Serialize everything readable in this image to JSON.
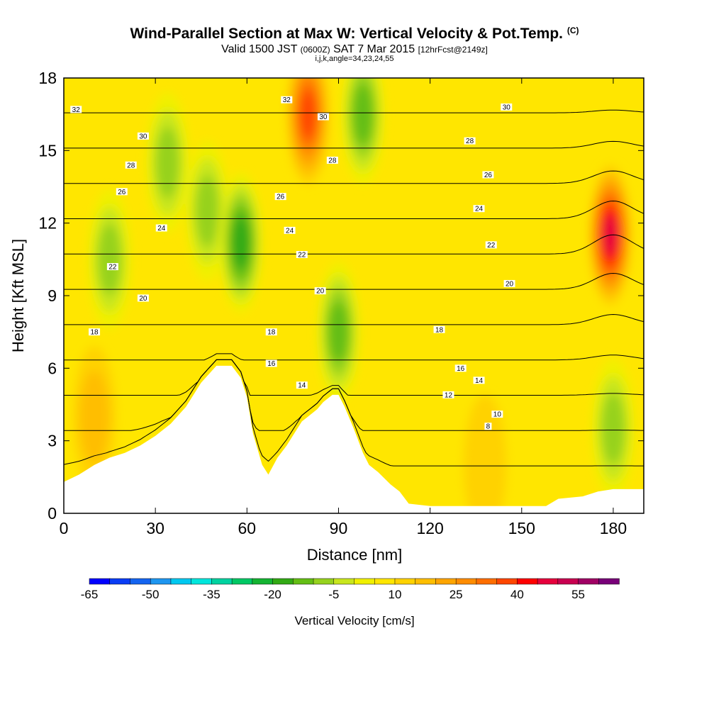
{
  "header": {
    "title": "Wind-Parallel Section at Max W: Vertical Velocity & Pot.Temp.",
    "title_badge": "(C)",
    "subtitle_a": "Valid 1500 JST",
    "subtitle_b": "(0600Z)",
    "subtitle_c": "SAT 7 Mar 2015",
    "subtitle_d": "[12hrFcst@2149z]",
    "indices": "i,j,k,angle=34,23,24,55"
  },
  "chart_data": {
    "type": "heatmap",
    "xlabel": "Distance [nm]",
    "ylabel": "Height [Kft MSL]",
    "xlim": [
      0,
      190
    ],
    "ylim": [
      0,
      18
    ],
    "x_ticks": [
      0,
      30,
      60,
      90,
      120,
      150,
      180
    ],
    "y_ticks": [
      0,
      3,
      6,
      9,
      12,
      15,
      18
    ],
    "colorbar": {
      "label": "Vertical Velocity [cm/s]",
      "tick_labels": [
        -65,
        -50,
        -35,
        -20,
        -5,
        10,
        25,
        40,
        55
      ],
      "levels": [
        -65,
        -60,
        -55,
        -50,
        -45,
        -40,
        -35,
        -30,
        -25,
        -20,
        -15,
        -10,
        -5,
        0,
        5,
        10,
        15,
        20,
        25,
        30,
        35,
        40,
        45,
        50,
        55,
        60
      ],
      "colors": [
        "#0000ff",
        "#0a3cf5",
        "#1464f0",
        "#1e96f0",
        "#00c8f0",
        "#00e6dc",
        "#00d2a0",
        "#00c864",
        "#14b432",
        "#32aa14",
        "#64be14",
        "#96d21e",
        "#c8e61e",
        "#f0f000",
        "#ffe600",
        "#ffd200",
        "#ffbe00",
        "#ffa500",
        "#ff8c00",
        "#ff6e00",
        "#ff4600",
        "#ff0000",
        "#e6003c",
        "#c80050",
        "#a00064",
        "#780078"
      ]
    },
    "velocity_features": [
      {
        "x": 47,
        "z": 12.5,
        "peak": -10,
        "note": "broad weak downdraft"
      },
      {
        "x": 58,
        "z": 11.2,
        "peak": -20
      },
      {
        "x": 34,
        "z": 14.5,
        "peak": -10
      },
      {
        "x": 15,
        "z": 10.5,
        "peak": -10
      },
      {
        "x": 80,
        "z": 16.5,
        "peak": 35
      },
      {
        "x": 98,
        "z": 16.5,
        "peak": -15
      },
      {
        "x": 90,
        "z": 7.5,
        "peak": -15
      },
      {
        "x": 179,
        "z": 11.5,
        "peak": 45,
        "note": "maximum updraft"
      },
      {
        "x": 180,
        "z": 3.5,
        "peak": -10
      },
      {
        "x": 10,
        "z": 4.0,
        "peak": 15
      },
      {
        "x": 138,
        "z": 2.0,
        "peak": 10
      }
    ],
    "terrain_profile": {
      "x": [
        0,
        5,
        10,
        15,
        20,
        25,
        30,
        35,
        40,
        45,
        50,
        55,
        58,
        60,
        62,
        65,
        67,
        70,
        73,
        75,
        78,
        80,
        83,
        85,
        88,
        90,
        92,
        95,
        98,
        100,
        103,
        107,
        110,
        113,
        120,
        130,
        140,
        150,
        158,
        162,
        170,
        175,
        180,
        185,
        190
      ],
      "z": [
        1.3,
        1.6,
        2.0,
        2.3,
        2.5,
        2.8,
        3.2,
        3.7,
        4.4,
        5.4,
        6.1,
        6.1,
        5.6,
        4.8,
        3.3,
        2.0,
        1.6,
        2.3,
        2.8,
        3.2,
        3.8,
        4.0,
        4.3,
        4.6,
        4.9,
        4.9,
        4.4,
        3.5,
        2.5,
        2.0,
        1.7,
        1.2,
        0.9,
        0.4,
        0.3,
        0.3,
        0.3,
        0.3,
        0.3,
        0.6,
        0.7,
        0.9,
        1.0,
        1.0,
        1.0
      ]
    },
    "isotherms_C": [
      8,
      10,
      12,
      14,
      16,
      18,
      20,
      22,
      24,
      26,
      28,
      30,
      32
    ],
    "isotherm_labels": [
      {
        "v": 32,
        "x": 4,
        "z": 16.7
      },
      {
        "v": 32,
        "x": 73,
        "z": 17.1
      },
      {
        "v": 30,
        "x": 26,
        "z": 15.6
      },
      {
        "v": 30,
        "x": 85,
        "z": 16.4
      },
      {
        "v": 30,
        "x": 145,
        "z": 16.8
      },
      {
        "v": 28,
        "x": 22,
        "z": 14.4
      },
      {
        "v": 28,
        "x": 88,
        "z": 14.6
      },
      {
        "v": 28,
        "x": 133,
        "z": 15.4
      },
      {
        "v": 26,
        "x": 19,
        "z": 13.3
      },
      {
        "v": 26,
        "x": 71,
        "z": 13.1
      },
      {
        "v": 26,
        "x": 139,
        "z": 14.0
      },
      {
        "v": 24,
        "x": 32,
        "z": 11.8
      },
      {
        "v": 24,
        "x": 74,
        "z": 11.7
      },
      {
        "v": 24,
        "x": 136,
        "z": 12.6
      },
      {
        "v": 22,
        "x": 16,
        "z": 10.2
      },
      {
        "v": 22,
        "x": 78,
        "z": 10.7
      },
      {
        "v": 22,
        "x": 140,
        "z": 11.1
      },
      {
        "v": 20,
        "x": 26,
        "z": 8.9
      },
      {
        "v": 20,
        "x": 84,
        "z": 9.2
      },
      {
        "v": 20,
        "x": 146,
        "z": 9.5
      },
      {
        "v": 18,
        "x": 10,
        "z": 7.5
      },
      {
        "v": 18,
        "x": 68,
        "z": 7.5
      },
      {
        "v": 18,
        "x": 123,
        "z": 7.6
      },
      {
        "v": 16,
        "x": 68,
        "z": 6.2
      },
      {
        "v": 16,
        "x": 130,
        "z": 6.0
      },
      {
        "v": 14,
        "x": 78,
        "z": 5.3
      },
      {
        "v": 14,
        "x": 136,
        "z": 5.5
      },
      {
        "v": 12,
        "x": 126,
        "z": 4.9
      },
      {
        "v": 10,
        "x": 142,
        "z": 4.1
      },
      {
        "v": 8,
        "x": 139,
        "z": 3.6
      }
    ]
  }
}
